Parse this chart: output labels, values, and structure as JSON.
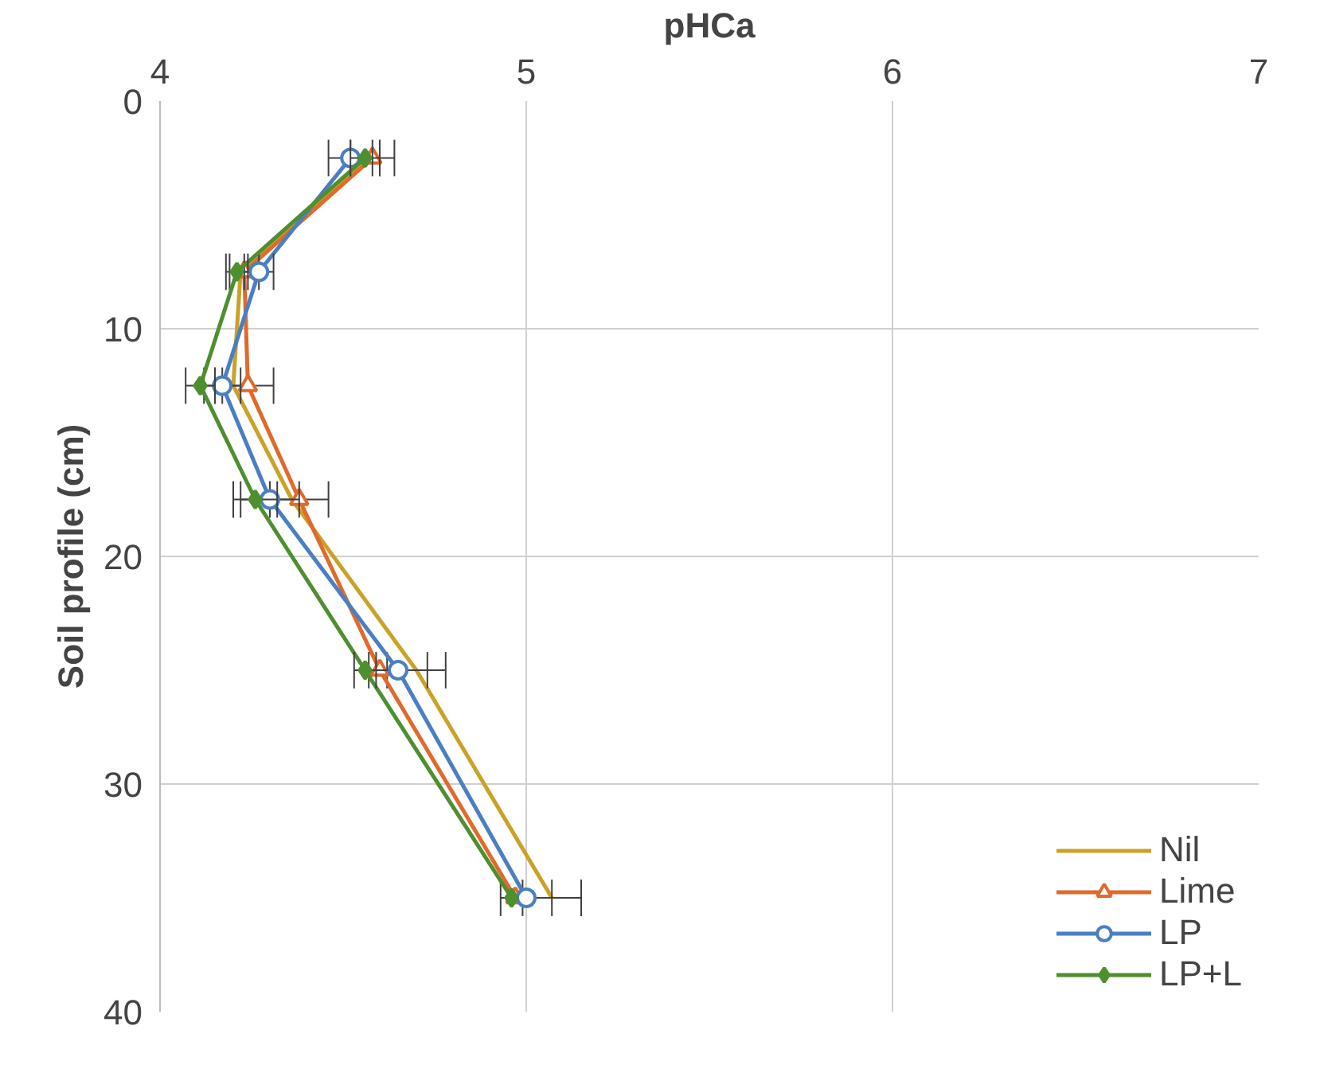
{
  "chart_data": {
    "type": "line",
    "xlabel": "pHCa",
    "ylabel": "Soil profile (cm)",
    "xlim": [
      4,
      7
    ],
    "xticks": [
      4,
      5,
      6,
      7
    ],
    "ylim": [
      40,
      0
    ],
    "yticks": [
      0,
      10,
      20,
      30,
      40
    ],
    "grid": true,
    "legend": "bottom right",
    "series": [
      {
        "name": "Nil",
        "color": "#c9a227",
        "marker": "none",
        "x": [
          4.57,
          4.22,
          4.2,
          4.36,
          4.7,
          5.07
        ],
        "values": [
          2.5,
          7.5,
          12.5,
          17.5,
          25,
          35
        ],
        "xerrors": [
          null,
          null,
          null,
          null,
          0.08,
          0.08
        ]
      },
      {
        "name": "Lime",
        "color": "#e06a2c",
        "marker": "triangle",
        "x": [
          4.58,
          4.23,
          4.24,
          4.38,
          4.6,
          4.97
        ],
        "values": [
          2.5,
          7.5,
          12.5,
          17.5,
          25,
          35
        ],
        "xerrors": [
          0.06,
          0.04,
          0.07,
          0.08,
          null,
          null
        ]
      },
      {
        "name": "LP",
        "color": "#4a7fc1",
        "marker": "circle",
        "x": [
          4.52,
          4.27,
          4.17,
          4.3,
          4.65,
          5.0
        ],
        "values": [
          2.5,
          7.5,
          12.5,
          17.5,
          25,
          35
        ],
        "xerrors": [
          0.06,
          0.04,
          0.05,
          0.08,
          0.08,
          0.07
        ]
      },
      {
        "name": "LP+L",
        "color": "#4e8f2f",
        "marker": "diamond",
        "x": [
          4.56,
          4.21,
          4.11,
          4.26,
          4.56,
          4.96
        ],
        "values": [
          2.5,
          7.5,
          12.5,
          17.5,
          25,
          35
        ],
        "xerrors": [
          0.04,
          0.03,
          0.04,
          0.06,
          0.03,
          null
        ]
      }
    ]
  }
}
